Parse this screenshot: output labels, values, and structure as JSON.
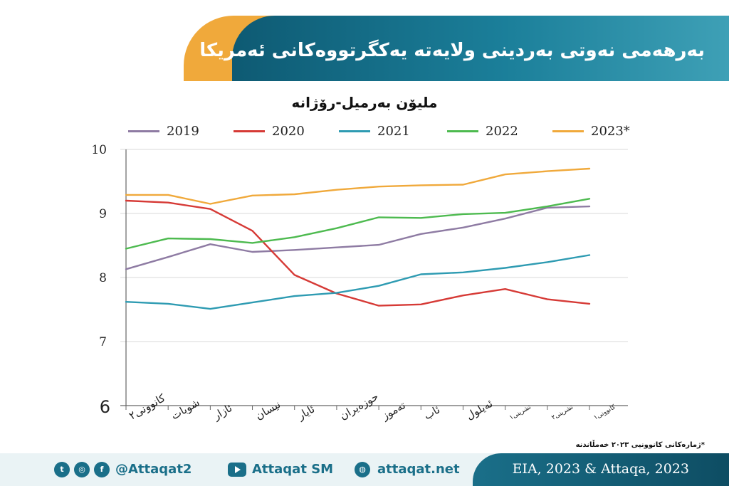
{
  "header": {
    "title": "بەرهەمی نەوتی بەردینی ولایەتە یەکگرتووەکانی ئەمریکا"
  },
  "footnote": "*ژمارەکانی کانوونیی ٢٠٢٣ خەمڵاندنە",
  "footer": {
    "twitter_handle": "@Attaqat2",
    "youtube_name": "Attaqat SM",
    "website": "attaqat.net",
    "source": "EIA, 2023 & Attaqa, 2023"
  },
  "colors": {
    "2019": "#8e7ba3",
    "2020": "#d63a36",
    "2021": "#2e9bb2",
    "2022": "#4dba4f",
    "2023*": "#f0a93b"
  },
  "chart_data": {
    "type": "line",
    "title": "ملیۆن بەرمیل-رۆژانە",
    "xlabel": "",
    "ylabel": "",
    "ylim": [
      6,
      10
    ],
    "yticks": [
      10,
      9,
      8,
      7,
      6
    ],
    "grid": true,
    "legend_position": "top",
    "categories": [
      "کانوونی٢",
      "شوبات",
      "ئازار",
      "نیسان",
      "ئایار",
      "حوزەیران",
      "تەموز",
      "ئاب",
      "ئەیلول",
      "تشرینی١",
      "تشرینی٢",
      "کانوونی١"
    ],
    "series": [
      {
        "name": "2019",
        "values": [
          8.13,
          8.32,
          8.52,
          8.4,
          8.43,
          8.47,
          8.51,
          8.68,
          8.78,
          8.92,
          9.09,
          9.11
        ]
      },
      {
        "name": "2020",
        "values": [
          9.2,
          9.17,
          9.07,
          8.73,
          8.04,
          7.75,
          7.56,
          7.58,
          7.72,
          7.82,
          7.66,
          7.59
        ]
      },
      {
        "name": "2021",
        "values": [
          7.62,
          7.59,
          7.51,
          7.61,
          7.71,
          7.76,
          7.87,
          8.05,
          8.08,
          8.15,
          8.24,
          8.35
        ]
      },
      {
        "name": "2022",
        "values": [
          8.45,
          8.61,
          8.6,
          8.54,
          8.63,
          8.77,
          8.94,
          8.93,
          8.99,
          9.01,
          9.11,
          9.23
        ]
      },
      {
        "name": "2023*",
        "values": [
          9.29,
          9.29,
          9.15,
          9.28,
          9.3,
          9.37,
          9.42,
          9.44,
          9.45,
          9.61,
          9.66,
          9.7
        ]
      }
    ]
  }
}
